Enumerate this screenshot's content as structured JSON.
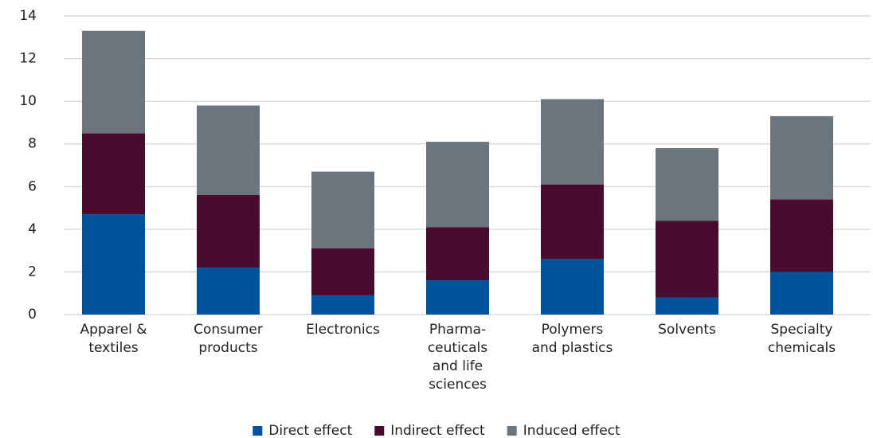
{
  "chart_data": {
    "type": "stacked-bar",
    "categories": [
      [
        "Apparel &",
        "textiles"
      ],
      [
        "Consumer",
        "products"
      ],
      [
        "Electronics"
      ],
      [
        "Pharma-",
        "ceuticals",
        "and life",
        "sciences"
      ],
      [
        "Polymers",
        "and plastics"
      ],
      [
        "Solvents"
      ],
      [
        "Specialty",
        "chemicals"
      ]
    ],
    "series": [
      {
        "name": "Direct effect",
        "color": "#00529b",
        "values": [
          4.7,
          2.2,
          0.9,
          1.6,
          2.6,
          0.8,
          2.0
        ]
      },
      {
        "name": "Indirect effect",
        "color": "#4a0c2e",
        "values": [
          3.8,
          3.4,
          2.2,
          2.5,
          3.5,
          3.6,
          3.4
        ]
      },
      {
        "name": "Induced effect",
        "color": "#6b767c",
        "values": [
          4.8,
          4.2,
          3.6,
          4.0,
          4.0,
          3.4,
          3.9
        ]
      }
    ],
    "ylim": [
      0,
      14
    ],
    "yticks": [
      0,
      2,
      4,
      6,
      8,
      10,
      12,
      14
    ],
    "grid": true,
    "legend": "bottom"
  }
}
